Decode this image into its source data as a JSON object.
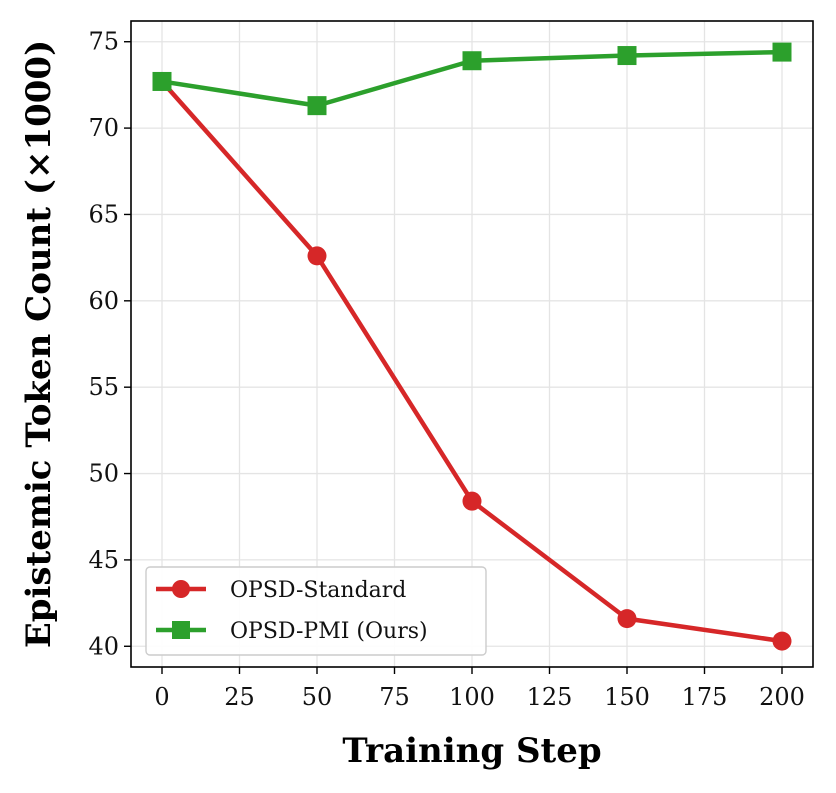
{
  "chart_data": {
    "type": "line",
    "title": "",
    "xlabel": "Training Step",
    "ylabel": "Epistemic Token Count (×1000)",
    "x": [
      0,
      50,
      100,
      150,
      200
    ],
    "xlim": [
      -10,
      210
    ],
    "ylim": [
      38.8,
      76.2
    ],
    "xticks": [
      0,
      25,
      50,
      75,
      100,
      125,
      150,
      175,
      200
    ],
    "yticks": [
      40,
      45,
      50,
      55,
      60,
      65,
      70,
      75
    ],
    "grid": true,
    "legend_position": "lower-left",
    "series": [
      {
        "name": "OPSD-Standard",
        "values": [
          72.7,
          62.6,
          48.4,
          41.6,
          40.3
        ],
        "color": "#d62728",
        "marker": "circle"
      },
      {
        "name": "OPSD-PMI (Ours)",
        "values": [
          72.7,
          71.3,
          73.9,
          74.2,
          74.4
        ],
        "color": "#2ca02c",
        "marker": "square"
      }
    ]
  }
}
